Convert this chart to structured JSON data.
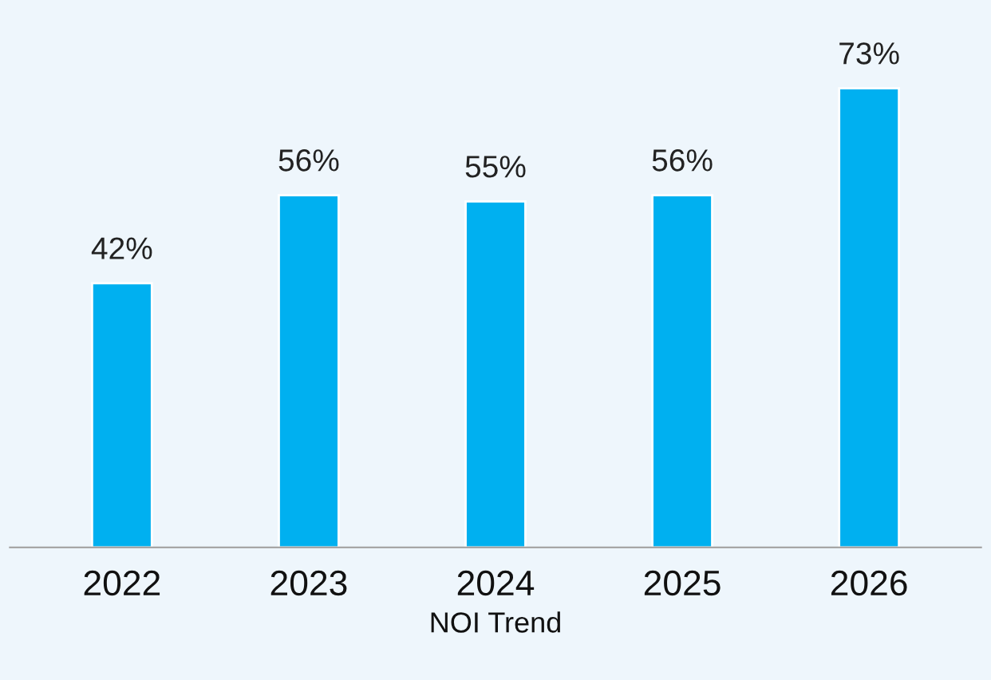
{
  "chart_data": {
    "type": "bar",
    "xlabel": "NOI Trend",
    "categories": [
      "2022",
      "2023",
      "2024",
      "2025",
      "2026"
    ],
    "values": [
      42,
      56,
      55,
      56,
      73
    ],
    "value_labels": [
      "42%",
      "56%",
      "55%",
      "56%",
      "73%"
    ],
    "color": "#00b0f0",
    "grid": false,
    "legend": false,
    "tick_labels": "x"
  }
}
